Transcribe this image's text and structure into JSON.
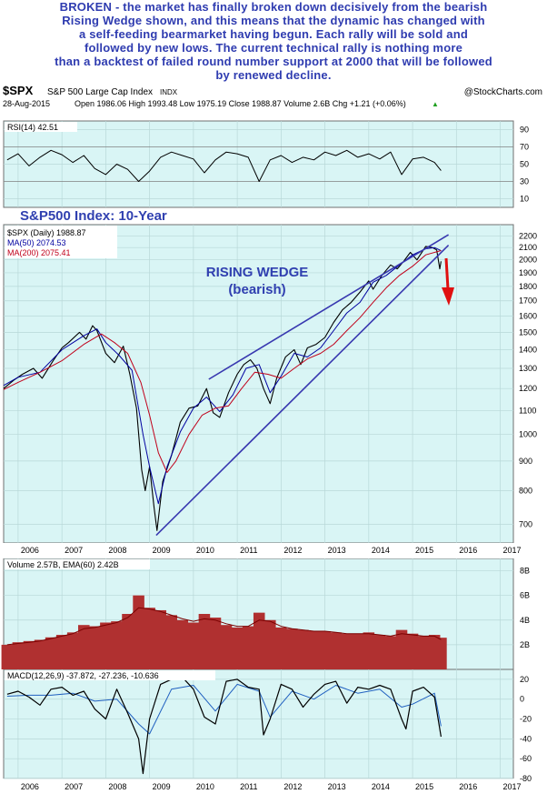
{
  "commentary": {
    "lines": [
      "BROKEN - the market has finally broken down decisively from the bearish",
      "Rising Wedge shown, and this means that the dynamic has changed with",
      "a self-feeding bearmarket having begun. Each rally will be sold and",
      "followed by new lows. The current technical rally is nothing more",
      "than a backtest of failed round number support at 2000 that will be followed",
      "by renewed decline."
    ]
  },
  "header": {
    "symbol": "$SPX",
    "name": "S&P 500 Large Cap Index",
    "exchange": "INDX",
    "watermark": "@StockCharts.com",
    "date": "28-Aug-2015",
    "quote": "Open 1986.06  High 1993.48  Low 1975.19  Close 1988.87  Volume 2.6B  Chg +1.21 (+0.06%)",
    "quote_arrow": "▲"
  },
  "colors": {
    "panel_bg": "#d9f5f5",
    "price": "#000000",
    "ma50": "#0000a0",
    "ma200": "#c0001a",
    "wedge": "#3838b0",
    "arrow": "#e01010",
    "volume": "#b03030",
    "grid": "#b8d8d8",
    "label_blue": "#3040b0"
  },
  "annotations": {
    "index_title": "S&P500 Index: 10-Year",
    "wedge_title": "RISING WEDGE",
    "wedge_sub": "(bearish)"
  },
  "chart_data": [
    {
      "type": "line",
      "title": "RSI(14) 42.51",
      "ylim": [
        0,
        100
      ],
      "yticks": [
        10,
        30,
        50,
        70,
        90
      ],
      "reference_lines": [
        30,
        70
      ],
      "x": [
        2005.75,
        2006.0,
        2006.25,
        2006.5,
        2006.75,
        2007.0,
        2007.25,
        2007.5,
        2007.75,
        2008.0,
        2008.25,
        2008.5,
        2008.75,
        2009.0,
        2009.25,
        2009.5,
        2009.75,
        2010.0,
        2010.25,
        2010.5,
        2010.75,
        2011.0,
        2011.25,
        2011.5,
        2011.75,
        2012.0,
        2012.25,
        2012.5,
        2012.75,
        2013.0,
        2013.25,
        2013.5,
        2013.75,
        2014.0,
        2014.25,
        2014.5,
        2014.75,
        2015.0,
        2015.25,
        2015.5,
        2015.65
      ],
      "values": [
        55,
        62,
        48,
        58,
        66,
        61,
        52,
        60,
        45,
        38,
        50,
        44,
        30,
        42,
        58,
        64,
        60,
        56,
        40,
        55,
        64,
        62,
        58,
        30,
        55,
        60,
        52,
        58,
        55,
        64,
        60,
        66,
        58,
        62,
        56,
        64,
        38,
        56,
        58,
        52,
        42.51
      ]
    },
    {
      "type": "line",
      "title": "$SPX (Daily) 1988.87",
      "scale": "log",
      "ylim": [
        650,
        2300
      ],
      "yticks": [
        700,
        800,
        900,
        1000,
        1100,
        1200,
        1300,
        1400,
        1500,
        1600,
        1700,
        1800,
        1900,
        2000,
        2100,
        2200
      ],
      "xticks": [
        "2006",
        "2007",
        "2008",
        "2009",
        "2010",
        "2011",
        "2012",
        "2013",
        "2014",
        "2015",
        "2016",
        "2017"
      ],
      "legend": [
        "$SPX (Daily) 1988.87",
        "MA(50) 2074.53",
        "MA(200) 2075.41"
      ],
      "series": [
        {
          "name": "$SPX (Daily) 1988.87",
          "x": [
            2005.67,
            2005.9,
            2006.1,
            2006.35,
            2006.55,
            2006.8,
            2007.0,
            2007.15,
            2007.4,
            2007.55,
            2007.7,
            2007.8,
            2008.0,
            2008.2,
            2008.4,
            2008.55,
            2008.7,
            2008.82,
            2008.9,
            2009.0,
            2009.1,
            2009.17,
            2009.3,
            2009.5,
            2009.7,
            2009.9,
            2010.1,
            2010.3,
            2010.45,
            2010.6,
            2010.8,
            2011.0,
            2011.15,
            2011.3,
            2011.45,
            2011.6,
            2011.75,
            2011.9,
            2012.1,
            2012.3,
            2012.45,
            2012.6,
            2012.8,
            2013.0,
            2013.2,
            2013.4,
            2013.6,
            2013.8,
            2014.0,
            2014.1,
            2014.3,
            2014.5,
            2014.65,
            2014.8,
            2014.95,
            2015.1,
            2015.3,
            2015.45,
            2015.55,
            2015.62,
            2015.65
          ],
          "values": [
            1200,
            1240,
            1270,
            1300,
            1250,
            1340,
            1410,
            1440,
            1500,
            1460,
            1540,
            1510,
            1380,
            1330,
            1420,
            1270,
            1110,
            870,
            800,
            880,
            750,
            683,
            830,
            920,
            1050,
            1110,
            1120,
            1200,
            1090,
            1070,
            1180,
            1270,
            1320,
            1345,
            1300,
            1200,
            1130,
            1250,
            1360,
            1400,
            1320,
            1410,
            1430,
            1470,
            1560,
            1640,
            1690,
            1760,
            1840,
            1780,
            1880,
            1960,
            1930,
            1990,
            2060,
            2000,
            2110,
            2100,
            2080,
            1930,
            1988.87
          ]
        },
        {
          "name": "MA(50) 2074.53",
          "x": [
            2005.67,
            2006.0,
            2006.5,
            2007.0,
            2007.5,
            2007.8,
            2008.0,
            2008.3,
            2008.6,
            2008.85,
            2009.0,
            2009.2,
            2009.4,
            2009.7,
            2010.0,
            2010.3,
            2010.6,
            2010.9,
            2011.2,
            2011.5,
            2011.75,
            2012.0,
            2012.3,
            2012.6,
            2012.9,
            2013.2,
            2013.5,
            2013.8,
            2014.1,
            2014.4,
            2014.7,
            2015.0,
            2015.3,
            2015.5,
            2015.65
          ],
          "values": [
            1215,
            1255,
            1280,
            1400,
            1480,
            1520,
            1440,
            1370,
            1290,
            1000,
            880,
            760,
            880,
            1010,
            1110,
            1160,
            1095,
            1170,
            1300,
            1320,
            1180,
            1260,
            1380,
            1360,
            1410,
            1510,
            1620,
            1690,
            1830,
            1880,
            1960,
            2040,
            2090,
            2100,
            2074.53
          ]
        },
        {
          "name": "MA(200) 2075.41",
          "x": [
            2005.67,
            2006.0,
            2006.5,
            2007.0,
            2007.5,
            2007.9,
            2008.2,
            2008.5,
            2008.8,
            2009.0,
            2009.2,
            2009.4,
            2009.6,
            2009.9,
            2010.2,
            2010.5,
            2010.8,
            2011.1,
            2011.4,
            2011.7,
            2012.0,
            2012.3,
            2012.6,
            2012.9,
            2013.2,
            2013.5,
            2013.8,
            2014.1,
            2014.4,
            2014.7,
            2015.0,
            2015.3,
            2015.65
          ],
          "values": [
            1195,
            1230,
            1280,
            1340,
            1430,
            1490,
            1440,
            1380,
            1230,
            1080,
            930,
            860,
            900,
            1000,
            1080,
            1110,
            1120,
            1200,
            1280,
            1270,
            1250,
            1300,
            1350,
            1380,
            1430,
            1510,
            1590,
            1690,
            1790,
            1880,
            1950,
            2040,
            2075.41
          ]
        }
      ],
      "wedge_lines": [
        {
          "x": [
            2009.15,
            2015.82
          ],
          "values": [
            670,
            2120
          ]
        },
        {
          "x": [
            2010.35,
            2015.82
          ],
          "values": [
            1245,
            2210
          ]
        }
      ]
    },
    {
      "type": "bar",
      "title": "Volume 2.57B, EMA(60) 2.42B",
      "ylim": [
        0,
        9
      ],
      "yticks": [
        2,
        4,
        6,
        8
      ],
      "ytick_labels": [
        "2B",
        "4B",
        "6B",
        "8B"
      ],
      "x": [
        2005.75,
        2006.0,
        2006.25,
        2006.5,
        2006.75,
        2007.0,
        2007.25,
        2007.5,
        2007.75,
        2008.0,
        2008.25,
        2008.5,
        2008.75,
        2009.0,
        2009.25,
        2009.5,
        2009.75,
        2010.0,
        2010.25,
        2010.5,
        2010.75,
        2011.0,
        2011.25,
        2011.5,
        2011.75,
        2012.0,
        2012.25,
        2012.5,
        2012.75,
        2013.0,
        2013.25,
        2013.5,
        2013.75,
        2014.0,
        2014.25,
        2014.5,
        2014.75,
        2015.0,
        2015.25,
        2015.5,
        2015.65
      ],
      "values": [
        2.0,
        2.2,
        2.3,
        2.4,
        2.6,
        2.8,
        3.0,
        3.6,
        3.5,
        3.8,
        3.9,
        4.5,
        6.0,
        5.0,
        4.8,
        4.4,
        4.0,
        3.8,
        4.5,
        4.2,
        3.6,
        3.4,
        3.5,
        4.6,
        4.0,
        3.4,
        3.3,
        3.2,
        3.1,
        3.1,
        3.0,
        2.9,
        2.9,
        3.0,
        2.8,
        2.7,
        3.2,
        2.9,
        2.7,
        2.8,
        2.57
      ],
      "ema": [
        2.0,
        2.1,
        2.2,
        2.3,
        2.5,
        2.7,
        2.9,
        3.3,
        3.4,
        3.6,
        3.8,
        4.2,
        5.0,
        4.9,
        4.7,
        4.4,
        4.1,
        3.9,
        4.1,
        4.0,
        3.7,
        3.5,
        3.5,
        4.0,
        3.9,
        3.5,
        3.3,
        3.2,
        3.1,
        3.1,
        3.0,
        2.9,
        2.9,
        2.9,
        2.8,
        2.7,
        2.9,
        2.8,
        2.7,
        2.7,
        2.42
      ]
    },
    {
      "type": "line",
      "title": "MACD(12,26,9) -37.872, -27.236, -10.636",
      "ylim": [
        -80,
        30
      ],
      "yticks": [
        -80,
        -60,
        -40,
        -20,
        0,
        20
      ],
      "xticks": [
        "2006",
        "2007",
        "2008",
        "2009",
        "2010",
        "2011",
        "2012",
        "2013",
        "2014",
        "2015",
        "2016",
        "2017"
      ],
      "series": [
        {
          "name": "MACD",
          "x": [
            2005.75,
            2006.0,
            2006.25,
            2006.5,
            2006.75,
            2007.0,
            2007.25,
            2007.5,
            2007.75,
            2008.0,
            2008.25,
            2008.5,
            2008.75,
            2008.85,
            2009.0,
            2009.25,
            2009.5,
            2009.75,
            2010.0,
            2010.25,
            2010.5,
            2010.75,
            2011.0,
            2011.25,
            2011.5,
            2011.6,
            2011.75,
            2012.0,
            2012.25,
            2012.5,
            2012.75,
            2013.0,
            2013.25,
            2013.5,
            2013.75,
            2014.0,
            2014.25,
            2014.5,
            2014.75,
            2014.85,
            2015.0,
            2015.25,
            2015.5,
            2015.65
          ],
          "values": [
            5,
            8,
            2,
            -6,
            10,
            12,
            4,
            8,
            -10,
            -20,
            10,
            -14,
            -40,
            -75,
            -20,
            15,
            20,
            22,
            10,
            -18,
            -25,
            18,
            20,
            12,
            10,
            -36,
            -20,
            15,
            10,
            -8,
            5,
            15,
            18,
            -4,
            12,
            10,
            14,
            10,
            -20,
            -30,
            8,
            12,
            2,
            -37.872
          ]
        },
        {
          "name": "Signal",
          "x": [
            2005.75,
            2006.25,
            2006.75,
            2007.25,
            2007.75,
            2008.25,
            2008.75,
            2009.0,
            2009.5,
            2010.0,
            2010.5,
            2011.0,
            2011.5,
            2011.75,
            2012.25,
            2012.75,
            2013.25,
            2013.75,
            2014.25,
            2014.75,
            2015.0,
            2015.5,
            2015.65
          ],
          "values": [
            3,
            4,
            4,
            6,
            -2,
            0,
            -25,
            -35,
            10,
            14,
            -12,
            15,
            8,
            -18,
            8,
            0,
            14,
            6,
            10,
            -8,
            -5,
            6,
            -27.236
          ]
        }
      ]
    }
  ]
}
